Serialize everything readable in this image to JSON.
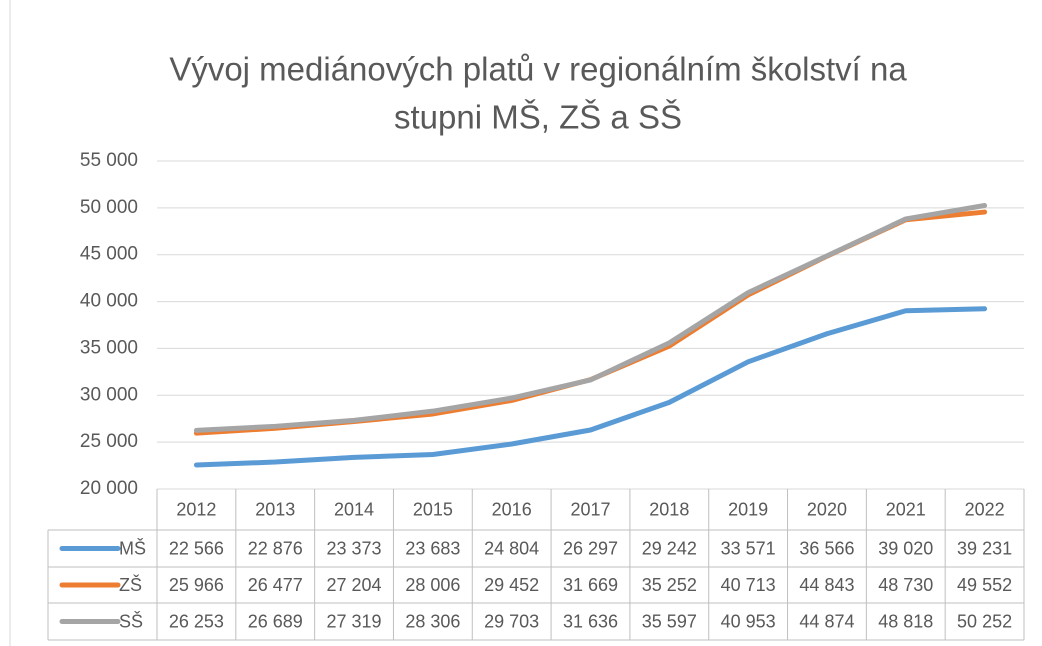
{
  "chart_data": {
    "type": "line",
    "title": [
      "Vývoj mediánových platů v regionálním školství na",
      "stupni MŠ, ZŠ a SŠ"
    ],
    "categories": [
      "2012",
      "2013",
      "2014",
      "2015",
      "2016",
      "2017",
      "2018",
      "2019",
      "2020",
      "2021",
      "2022"
    ],
    "series": [
      {
        "name": "MŠ",
        "color": "#5b9bd5",
        "values": [
          22566,
          22876,
          23373,
          23683,
          24804,
          26297,
          29242,
          33571,
          36566,
          39020,
          39231
        ],
        "value_labels": [
          "22 566",
          "22 876",
          "23 373",
          "23 683",
          "24 804",
          "26 297",
          "29 242",
          "33 571",
          "36 566",
          "39 020",
          "39 231"
        ]
      },
      {
        "name": "ZŠ",
        "color": "#ed7d31",
        "values": [
          25966,
          26477,
          27204,
          28006,
          29452,
          31669,
          35252,
          40713,
          44843,
          48730,
          49552
        ],
        "value_labels": [
          "25 966",
          "26 477",
          "27 204",
          "28 006",
          "29 452",
          "31 669",
          "35 252",
          "40 713",
          "44 843",
          "48 730",
          "49 552"
        ]
      },
      {
        "name": "SŠ",
        "color": "#a5a5a5",
        "values": [
          26253,
          26689,
          27319,
          28306,
          29703,
          31636,
          35597,
          40953,
          44874,
          48818,
          50252
        ],
        "value_labels": [
          "26 253",
          "26 689",
          "27 319",
          "28 306",
          "29 703",
          "31 636",
          "35 597",
          "40 953",
          "44 874",
          "48 818",
          "50 252"
        ]
      }
    ],
    "ylim": [
      20000,
      55000
    ],
    "yticks": [
      {
        "value": 20000,
        "label": "20 000"
      },
      {
        "value": 25000,
        "label": "25 000"
      },
      {
        "value": 30000,
        "label": "30 000"
      },
      {
        "value": 35000,
        "label": "35 000"
      },
      {
        "value": 40000,
        "label": "40 000"
      },
      {
        "value": 45000,
        "label": "45 000"
      },
      {
        "value": 50000,
        "label": "50 000"
      },
      {
        "value": 55000,
        "label": "55 000"
      }
    ],
    "grid": true
  }
}
